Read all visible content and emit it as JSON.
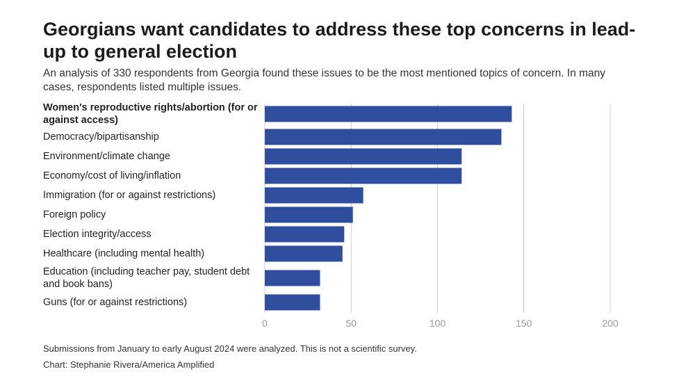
{
  "title": "Georgians want candidates to address these top concerns in lead-up to general election",
  "subtitle": "An analysis of 330 respondents from Georgia found these issues to be the most mentioned topics of concern. In many cases, respondents listed multiple issues.",
  "footnote": "Submissions from January to early August 2024 were analyzed. This is not a scientific survey.",
  "credit": "Chart: Stephanie Rivera/America Amplified",
  "chart_data": {
    "type": "bar",
    "orientation": "horizontal",
    "categories": [
      "Women's reproductive rights/abortion (for or against access)",
      "Democracy/bipartisanship",
      "Environment/climate change",
      "Economy/cost of living/inflation",
      "Immigration (for or against restrictions)",
      "Foreign policy",
      "Election integrity/access",
      "Healthcare (including mental health)",
      "Education (including teacher pay, student debt and book bans)",
      "Guns (for or against restrictions)"
    ],
    "values": [
      143,
      137,
      114,
      114,
      57,
      51,
      46,
      45,
      32,
      32
    ],
    "xlim": [
      0,
      200
    ],
    "xticks": [
      "0",
      "50",
      "100",
      "150",
      "200"
    ],
    "xlabel": "",
    "ylabel": "",
    "grid": true,
    "legend": "none",
    "bar_color": "#2f4f9e",
    "grid_color": "#cccccc"
  }
}
